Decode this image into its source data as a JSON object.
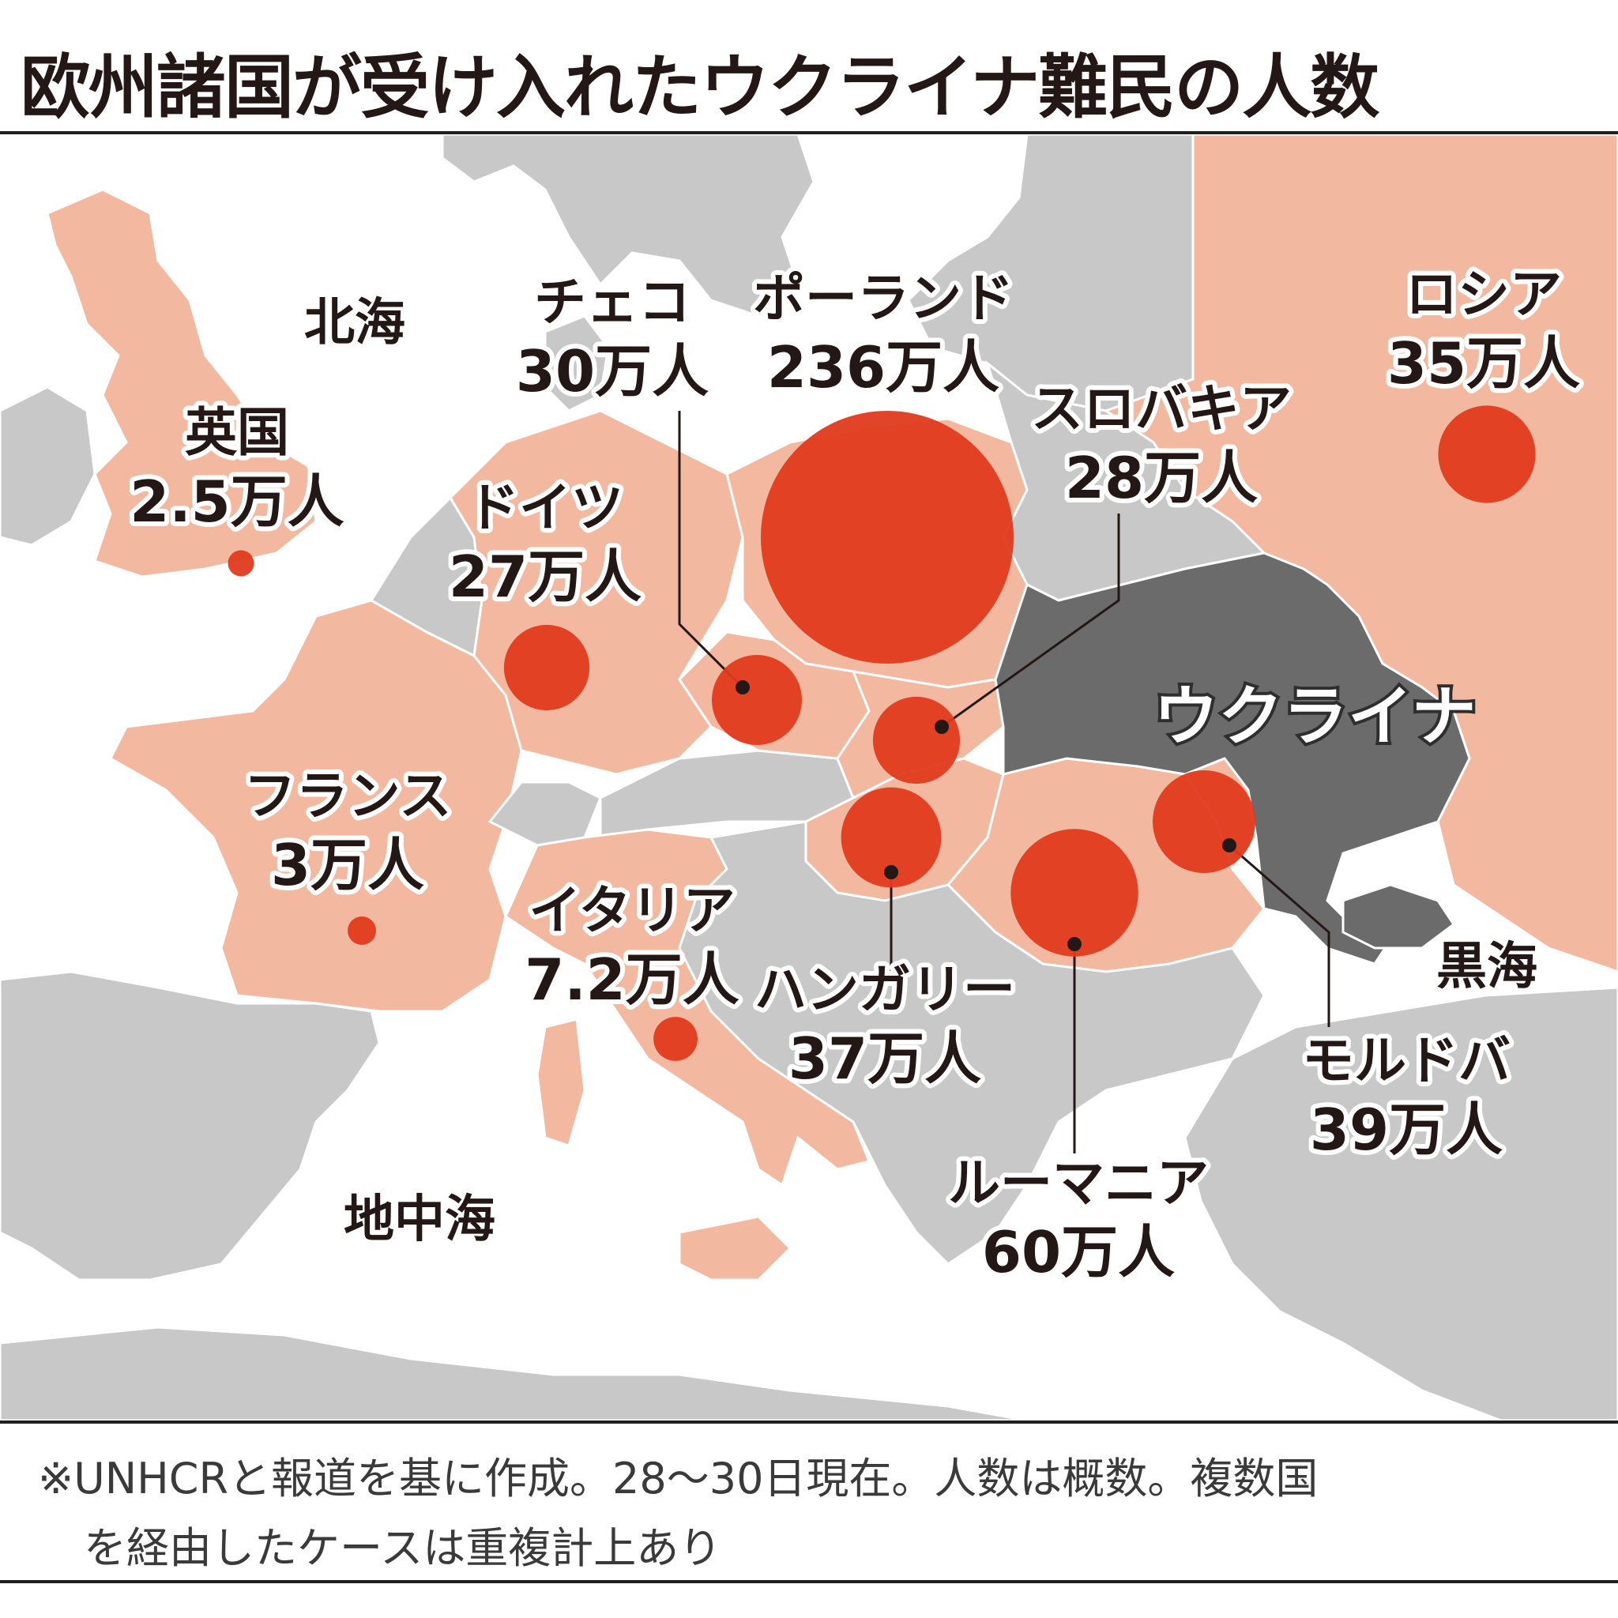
{
  "title": "欧州諸国が受け入れたウクライナ難民の人数",
  "seas": {
    "north_sea": "北海",
    "mediterranean": "地中海",
    "black_sea": "黒海"
  },
  "origin_country": "ウクライナ",
  "colors": {
    "receiving_country": "#f3b8a0",
    "other_land": "#c8c8c8",
    "ukraine": "#6b6b6b",
    "bubble": "#e03a1e",
    "sea": "#ffffff"
  },
  "countries": [
    {
      "id": "poland",
      "name": "ポーランド",
      "value": "236万人",
      "refugees_10k": 236
    },
    {
      "id": "romania",
      "name": "ルーマニア",
      "value": "60万人",
      "refugees_10k": 60
    },
    {
      "id": "moldova",
      "name": "モルドバ",
      "value": "39万人",
      "refugees_10k": 39
    },
    {
      "id": "hungary",
      "name": "ハンガリー",
      "value": "37万人",
      "refugees_10k": 37
    },
    {
      "id": "russia",
      "name": "ロシア",
      "value": "35万人",
      "refugees_10k": 35
    },
    {
      "id": "czech",
      "name": "チェコ",
      "value": "30万人",
      "refugees_10k": 30
    },
    {
      "id": "slovakia",
      "name": "スロバキア",
      "value": "28万人",
      "refugees_10k": 28
    },
    {
      "id": "germany",
      "name": "ドイツ",
      "value": "27万人",
      "refugees_10k": 27
    },
    {
      "id": "italy",
      "name": "イタリア",
      "value": "7.2万人",
      "refugees_10k": 7.2
    },
    {
      "id": "france",
      "name": "フランス",
      "value": "3万人",
      "refugees_10k": 3
    },
    {
      "id": "uk",
      "name": "英国",
      "value": "2.5万人",
      "refugees_10k": 2.5
    }
  ],
  "footnote": {
    "line1": "※UNHCRと報道を基に作成。28～30日現在。人数は概数。複数国",
    "line2": "を経由したケースは重複計上あり"
  }
}
